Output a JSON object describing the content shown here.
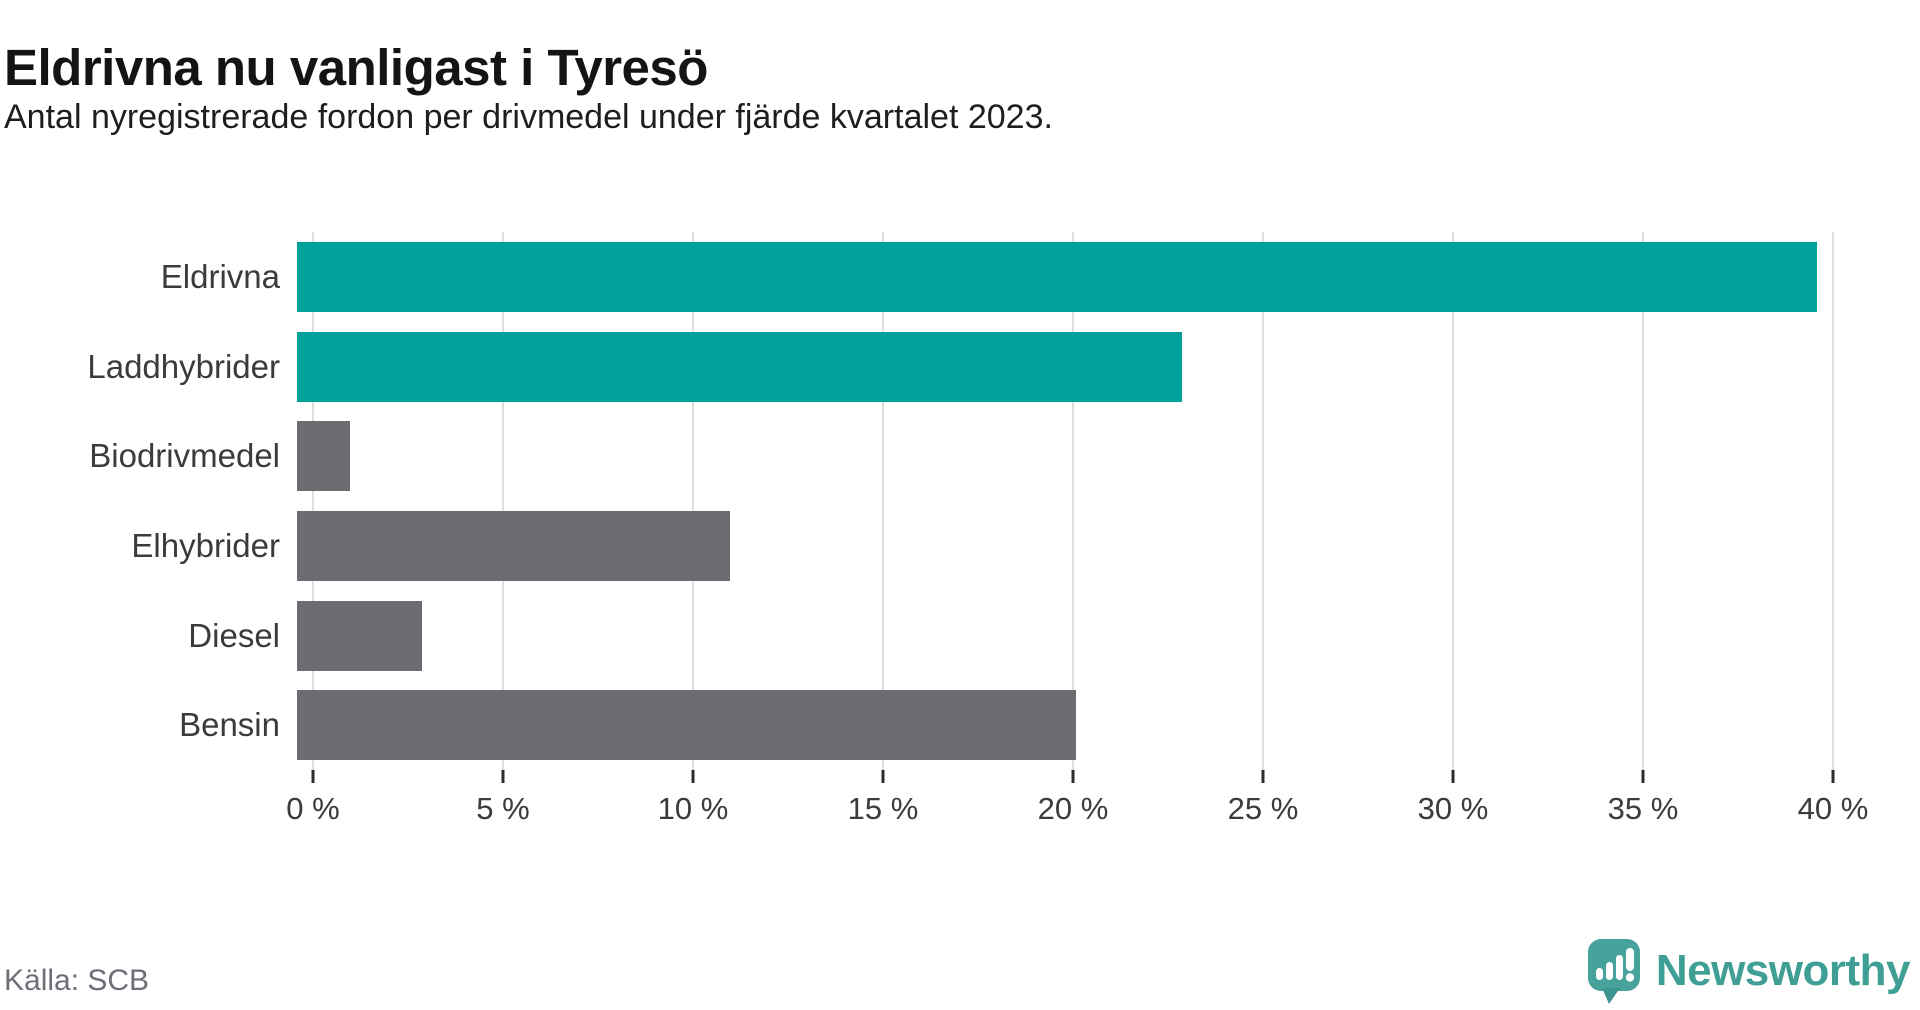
{
  "header": {
    "title": "Eldrivna nu vanligast i Tyresö",
    "subtitle": "Antal nyregistrerade fordon per drivmedel under fjärde kvartalet 2023."
  },
  "chart_data": {
    "type": "bar",
    "orientation": "horizontal",
    "title": "Eldrivna nu vanligast i Tyresö",
    "subtitle": "Antal nyregistrerade fordon per drivmedel under fjärde kvartalet 2023.",
    "categories": [
      "Eldrivna",
      "Laddhybrider",
      "Biodrivmedel",
      "Elhybrider",
      "Diesel",
      "Bensin"
    ],
    "values": [
      40.0,
      23.3,
      1.4,
      11.4,
      3.3,
      20.5
    ],
    "unit": "%",
    "xlim": [
      0,
      40
    ],
    "x_ticks": [
      0,
      5,
      10,
      15,
      20,
      25,
      30,
      35,
      40
    ],
    "x_tick_labels": [
      "0 %",
      "5 %",
      "10 %",
      "15 %",
      "20 %",
      "25 %",
      "30 %",
      "35 %",
      "40 %"
    ],
    "grid": true,
    "legend": "none",
    "highlighted_categories": [
      "Eldrivna",
      "Laddhybrider"
    ],
    "colors": {
      "highlight": "#00a19a",
      "default": "#6c6c72",
      "gridline": "#dedede",
      "tick_mark": "#2e2e2e",
      "axis_text": "#3b3b3b"
    }
  },
  "footer": {
    "source": "Källa: SCB",
    "brand": "Newsworthy",
    "brand_icon": "newsworthy-speech-bubble-chart-icon",
    "brand_color": "#3f9f95",
    "icon_fill": "#47a29b",
    "icon_tail_fill": "#3e948f"
  }
}
